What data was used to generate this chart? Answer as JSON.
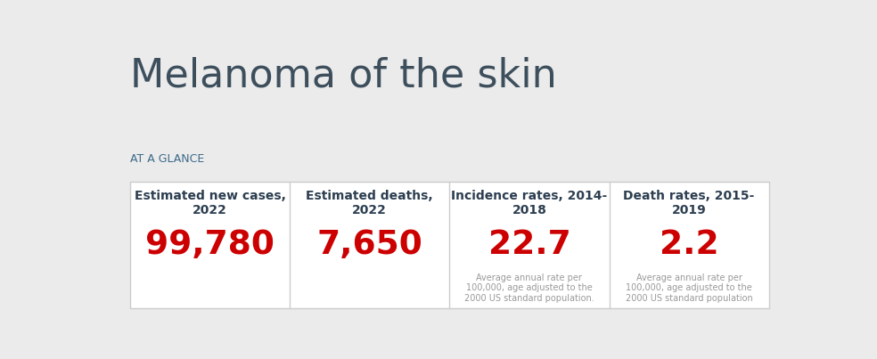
{
  "title": "Melanoma of the skin",
  "subtitle": "AT A GLANCE",
  "background_color": "#ebebeb",
  "card_background": "#ffffff",
  "card_border_color": "#cccccc",
  "title_color": "#3d4f5c",
  "subtitle_color": "#3d6b8a",
  "header_color": "#2c3e50",
  "value_color": "#cc0000",
  "note_color": "#999999",
  "columns": [
    {
      "header": "Estimated new cases,\n2022",
      "value": "99,780",
      "note": ""
    },
    {
      "header": "Estimated deaths,\n2022",
      "value": "7,650",
      "note": ""
    },
    {
      "header": "Incidence rates, 2014-\n2018",
      "value": "22.7",
      "note": "Average annual rate per\n100,000, age adjusted to the\n2000 US standard population."
    },
    {
      "header": "Death rates, 2015-\n2019",
      "value": "2.2",
      "note": "Average annual rate per\n100,000, age adjusted to the\n2000 US standard population"
    }
  ]
}
